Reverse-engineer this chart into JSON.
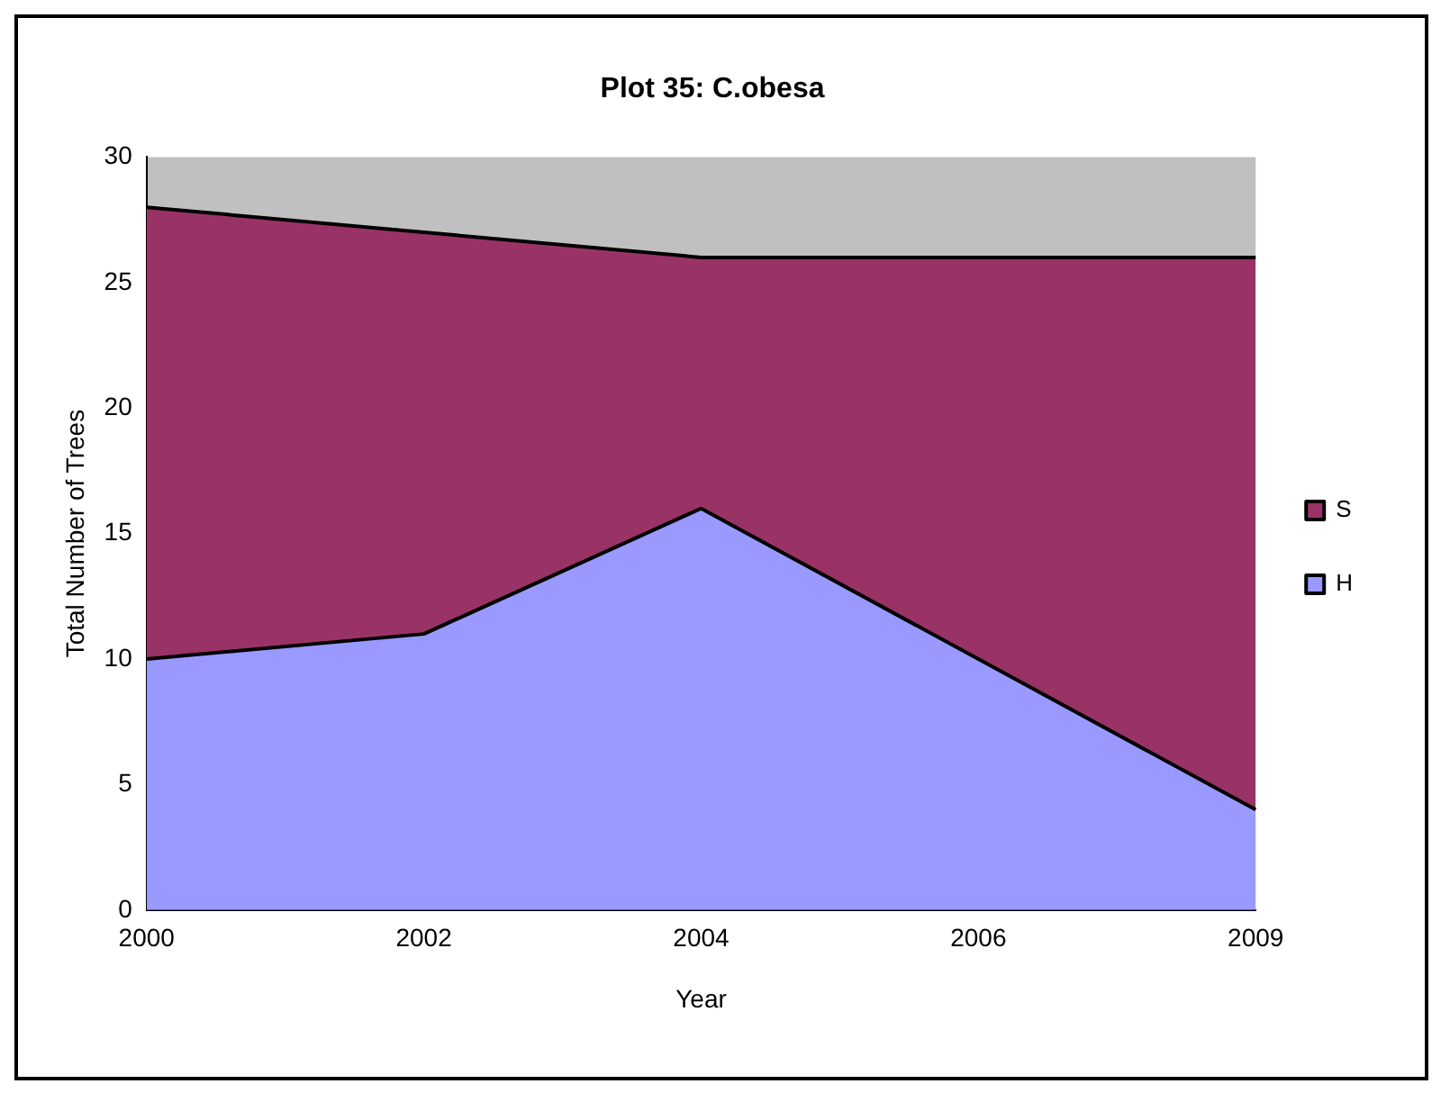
{
  "chart_data": {
    "type": "area",
    "title": "Plot 35: C.obesa",
    "xlabel": "Year",
    "ylabel": "Total Number of Trees",
    "categories": [
      "2000",
      "2002",
      "2004",
      "2006",
      "2009"
    ],
    "stacked": true,
    "series": [
      {
        "name": "H",
        "color": "#9999ff",
        "values": [
          10,
          11,
          16,
          10,
          4
        ]
      },
      {
        "name": "S",
        "color": "#993366",
        "values": [
          18,
          16,
          10,
          16,
          22
        ]
      }
    ],
    "ylim": [
      0,
      30
    ],
    "yticks": [
      0,
      5,
      10,
      15,
      20,
      25,
      30
    ],
    "grid": false,
    "legend": "right"
  }
}
